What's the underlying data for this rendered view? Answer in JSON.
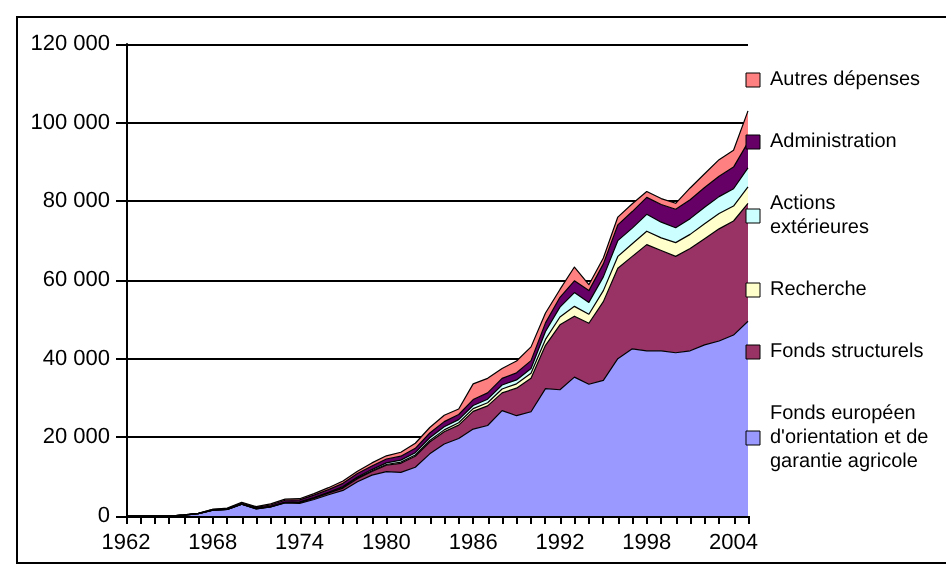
{
  "chart_data": {
    "type": "area",
    "stacked": true,
    "categories": [
      "1962",
      null,
      null,
      null,
      null,
      null,
      "1968",
      null,
      null,
      null,
      null,
      null,
      "1974",
      null,
      null,
      null,
      null,
      null,
      "1980",
      null,
      null,
      null,
      null,
      null,
      "1986",
      null,
      null,
      null,
      null,
      null,
      "1992",
      null,
      null,
      null,
      null,
      null,
      "1998",
      null,
      null,
      null,
      null,
      null,
      "2004",
      null
    ],
    "ylim": [
      0,
      120000
    ],
    "yticks": [
      0,
      {
        "value": 20000,
        "label": "20 000"
      },
      {
        "value": 40000,
        "label": "40 000"
      },
      {
        "value": 60000,
        "label": "60 000"
      },
      {
        "value": 80000,
        "label": "80 000"
      },
      {
        "value": 100000,
        "label": "100 000"
      },
      {
        "value": 120000,
        "label": "120 000"
      }
    ],
    "grid": "y",
    "legend": "right",
    "marker": "none",
    "series": [
      {
        "name": "Fonds européen d'orientation et de garantie agricole",
        "color": "#9999ff",
        "values": [
          0,
          0,
          0,
          0,
          200,
          600,
          1500,
          1700,
          3000,
          1800,
          2300,
          3300,
          3200,
          4200,
          5400,
          6500,
          8700,
          10400,
          11300,
          11100,
          12400,
          15800,
          18300,
          19700,
          22100,
          23000,
          26800,
          25500,
          26500,
          32400,
          32100,
          35300,
          33500,
          34500,
          40000,
          42500,
          42000,
          42000,
          41500,
          42000,
          43500,
          44500,
          46000,
          49500
        ]
      },
      {
        "name": "Fonds structurels",
        "color": "#993366",
        "values": [
          0,
          0,
          0,
          0,
          0,
          0,
          0,
          0,
          0,
          0,
          0,
          100,
          200,
          300,
          400,
          600,
          800,
          900,
          1600,
          2300,
          2800,
          3000,
          3100,
          3400,
          4500,
          5000,
          4500,
          7000,
          8500,
          11000,
          16500,
          15500,
          15500,
          20000,
          23000,
          23500,
          27000,
          25500,
          24500,
          26000,
          27000,
          28500,
          29000,
          30000
        ]
      },
      {
        "name": "Recherche",
        "color": "#ffffcc",
        "values": [
          0,
          0,
          0,
          0,
          0,
          0,
          0,
          0,
          0,
          100,
          100,
          100,
          100,
          100,
          100,
          200,
          200,
          200,
          200,
          300,
          300,
          400,
          500,
          600,
          700,
          800,
          1000,
          1100,
          1300,
          1500,
          2000,
          2500,
          2300,
          2800,
          3000,
          3200,
          3400,
          3200,
          3500,
          3600,
          3800,
          3900,
          3800,
          4200
        ]
      },
      {
        "name": "Actions extérieures",
        "color": "#ccffff",
        "values": [
          0,
          0,
          0,
          0,
          0,
          0,
          0,
          0,
          0,
          0,
          0,
          0,
          100,
          100,
          100,
          200,
          200,
          300,
          400,
          500,
          600,
          700,
          800,
          800,
          800,
          900,
          1000,
          1000,
          1200,
          2000,
          2500,
          3500,
          3000,
          3500,
          4000,
          4000,
          4300,
          4000,
          3800,
          4000,
          4200,
          4300,
          4400,
          4800
        ]
      },
      {
        "name": "Administration",
        "color": "#660066",
        "values": [
          0,
          0,
          0,
          0,
          100,
          100,
          200,
          200,
          300,
          300,
          400,
          500,
          500,
          600,
          700,
          800,
          900,
          900,
          1000,
          1000,
          1100,
          1200,
          1300,
          1300,
          1500,
          1600,
          1700,
          1800,
          2000,
          2200,
          2500,
          3000,
          3000,
          3300,
          4000,
          4200,
          4300,
          4500,
          4700,
          4800,
          5000,
          5200,
          5500,
          6500
        ]
      },
      {
        "name": "Autres dépenses",
        "color": "#ff8080",
        "values": [
          0,
          0,
          0,
          0,
          0,
          0,
          0,
          100,
          200,
          200,
          300,
          300,
          300,
          400,
          500,
          600,
          600,
          800,
          800,
          1000,
          1300,
          1400,
          1600,
          1400,
          4000,
          3700,
          2500,
          3000,
          3500,
          2500,
          2000,
          3500,
          1500,
          1500,
          2000,
          2000,
          1500,
          1500,
          1500,
          3000,
          3500,
          4200,
          4300,
          8000
        ]
      }
    ]
  }
}
